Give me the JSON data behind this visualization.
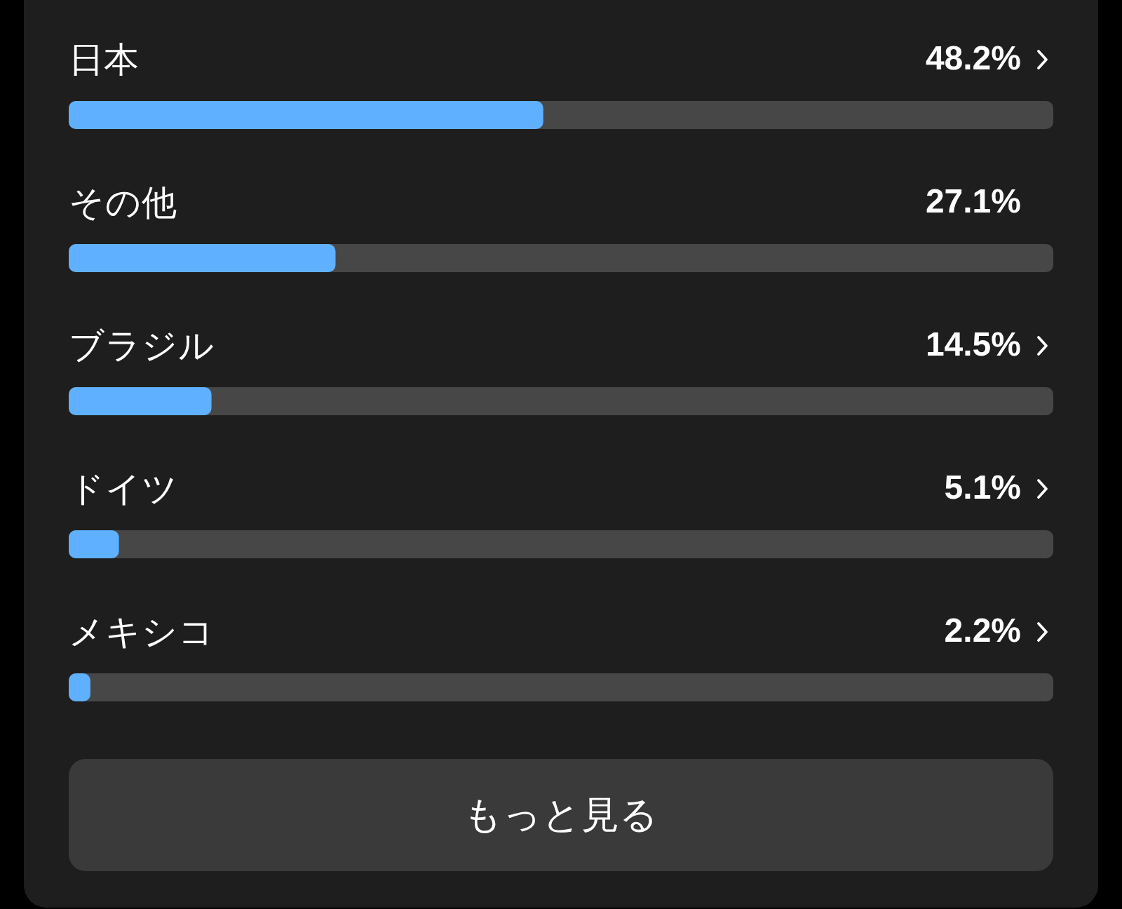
{
  "chart_data": {
    "type": "bar",
    "orientation": "horizontal",
    "categories": [
      "日本",
      "その他",
      "ブラジル",
      "ドイツ",
      "メキシコ"
    ],
    "values": [
      48.2,
      27.1,
      14.5,
      5.1,
      2.2
    ],
    "value_labels": [
      "48.2%",
      "27.1%",
      "14.5%",
      "5.1%",
      "2.2%"
    ],
    "color": "#5fb0ff",
    "xlim": [
      0,
      100
    ],
    "tick_labels": "y",
    "grid": false,
    "annotations": [
      "もっと見る"
    ]
  }
}
